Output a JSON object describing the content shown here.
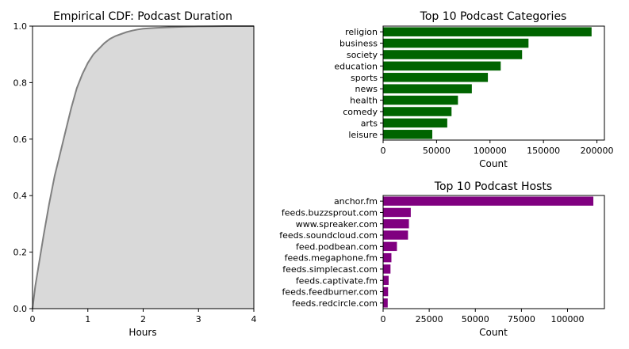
{
  "chart_data": [
    {
      "type": "area",
      "title": "Empirical CDF: Podcast Duration",
      "xlabel": "Hours",
      "ylabel": "",
      "xlim": [
        0,
        4
      ],
      "ylim": [
        0,
        1
      ],
      "xticks": [
        "0",
        "1",
        "2",
        "3",
        "4"
      ],
      "yticks": [
        "0.0",
        "0.2",
        "0.4",
        "0.6",
        "0.8",
        "1.0"
      ],
      "grid": false,
      "fill_color": "#d9d9d9",
      "line_color": "#808080",
      "x": [
        0,
        0.05,
        0.1,
        0.15,
        0.2,
        0.3,
        0.4,
        0.5,
        0.6,
        0.7,
        0.8,
        0.9,
        1.0,
        1.1,
        1.2,
        1.3,
        1.4,
        1.5,
        1.6,
        1.7,
        1.8,
        1.9,
        2.0,
        2.25,
        2.5,
        2.75,
        3.0,
        3.25,
        3.5,
        4.0
      ],
      "y": [
        0,
        0.08,
        0.14,
        0.2,
        0.26,
        0.37,
        0.47,
        0.55,
        0.63,
        0.71,
        0.78,
        0.83,
        0.87,
        0.9,
        0.92,
        0.94,
        0.955,
        0.965,
        0.972,
        0.979,
        0.984,
        0.988,
        0.991,
        0.994,
        0.996,
        0.998,
        0.999,
        0.9995,
        1.0,
        1.0
      ]
    },
    {
      "type": "bar",
      "orientation": "horizontal",
      "title": "Top 10 Podcast Categories",
      "xlabel": "Count",
      "ylabel": "",
      "xlim": [
        0,
        207000
      ],
      "xticks": [
        0,
        50000,
        100000,
        150000,
        200000
      ],
      "xtick_labels": [
        "0",
        "50000",
        "100000",
        "150000",
        "200000"
      ],
      "color": "#006400",
      "categories": [
        "religion",
        "business",
        "society",
        "education",
        "sports",
        "news",
        "health",
        "comedy",
        "arts",
        "leisure"
      ],
      "values": [
        195000,
        136000,
        130000,
        110000,
        98000,
        83000,
        70000,
        64000,
        60000,
        46000
      ]
    },
    {
      "type": "bar",
      "orientation": "horizontal",
      "title": "Top 10 Podcast Hosts",
      "xlabel": "Count",
      "ylabel": "",
      "xlim": [
        0,
        120000
      ],
      "xticks": [
        0,
        25000,
        50000,
        75000,
        100000
      ],
      "xtick_labels": [
        "0",
        "25000",
        "50000",
        "75000",
        "100000"
      ],
      "color": "#800080",
      "categories": [
        "anchor.fm",
        "feeds.buzzsprout.com",
        "www.spreaker.com",
        "feeds.soundcloud.com",
        "feed.podbean.com",
        "feeds.megaphone.fm",
        "feeds.simplecast.com",
        "feeds.captivate.fm",
        "feeds.feedburner.com",
        "feeds.redcircle.com"
      ],
      "values": [
        114000,
        15000,
        14000,
        13500,
        7500,
        4500,
        4000,
        3000,
        2700,
        2500
      ]
    }
  ]
}
